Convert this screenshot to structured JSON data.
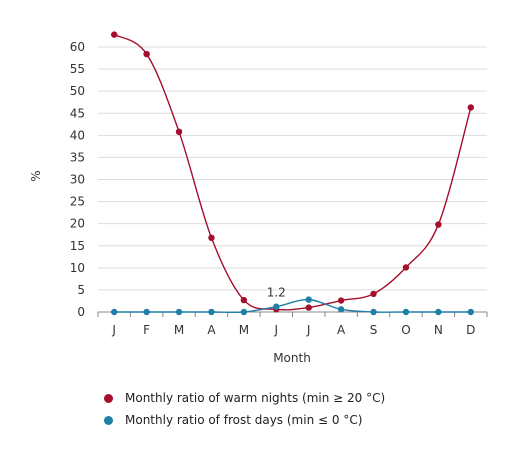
{
  "chart_data": {
    "type": "line",
    "title": "",
    "xlabel": "Month",
    "ylabel": "%",
    "categories": [
      "J",
      "F",
      "M",
      "A",
      "M",
      "J",
      "J",
      "A",
      "S",
      "O",
      "N",
      "D"
    ],
    "ylim": [
      0,
      60
    ],
    "yticks": [
      0,
      5,
      10,
      15,
      20,
      25,
      30,
      35,
      40,
      45,
      50,
      55,
      60
    ],
    "grid": "horizontal",
    "legend_position": "bottom-left",
    "series": [
      {
        "name": "Monthly ratio of warm nights (min ≥ 20 °C)",
        "color": "#a50f2d",
        "values": [
          62.8,
          58.4,
          40.8,
          16.8,
          2.7,
          0.6,
          1.0,
          2.6,
          4.1,
          10.1,
          19.8,
          46.3
        ]
      },
      {
        "name": "Monthly ratio of frost days (min ≤ 0 °C)",
        "color": "#1f7fa6",
        "values": [
          0,
          0,
          0,
          0,
          0,
          1.2,
          2.8,
          0.6,
          0,
          0,
          0,
          0
        ]
      }
    ],
    "annotations": [
      {
        "series": 1,
        "index": 5,
        "text": "1.2"
      }
    ]
  }
}
